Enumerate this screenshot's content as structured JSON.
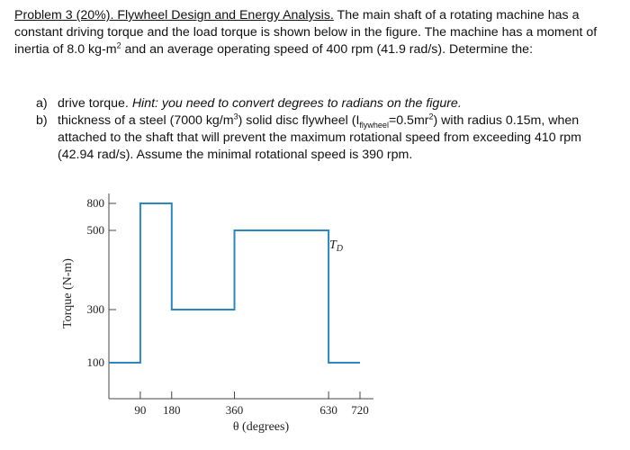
{
  "problem": {
    "heading": "Problem 3 (20%). Flywheel Design and Energy Analysis.",
    "intro_1": " The main shaft of a rotating machine has a constant driving torque and the load torque is shown below in the figure. The machine has a moment of inertia of 8.0 kg-m",
    "intro_2": " and an average operating speed of 400 rpm (41.9 rad/s). Determine the:"
  },
  "parts": {
    "a_letter": "a)",
    "a_text": "drive torque. ",
    "a_hint": "Hint: you need to convert degrees to radians on the figure.",
    "b_letter": "b)",
    "b_text_1": "thickness of a steel (7000 kg/m",
    "b_text_2": ") solid disc flywheel (I",
    "b_sub": "flywheel",
    "b_text_3": "=0.5mr",
    "b_text_4": ") with radius 0.15m, when attached to the shaft that will prevent the maximum rotational speed from exceeding 410 rpm (42.94 rad/s). Assume the minimal rotational speed is 390 rpm."
  },
  "chart_data": {
    "type": "line",
    "title": "",
    "xlabel": "θ (degrees)",
    "ylabel": "Torque (N-m)",
    "x_ticks": [
      90,
      180,
      360,
      630,
      720
    ],
    "y_ticks": [
      100,
      300,
      500,
      800
    ],
    "series": [
      {
        "name": "T_D",
        "x": [
          0,
          90,
          90,
          180,
          180,
          360,
          360,
          630,
          630,
          720
        ],
        "y": [
          100,
          100,
          800,
          800,
          300,
          300,
          500,
          500,
          100,
          100
        ]
      }
    ],
    "annotation": "T",
    "annotation_sub": "D",
    "line_color": "#2a87c0"
  }
}
